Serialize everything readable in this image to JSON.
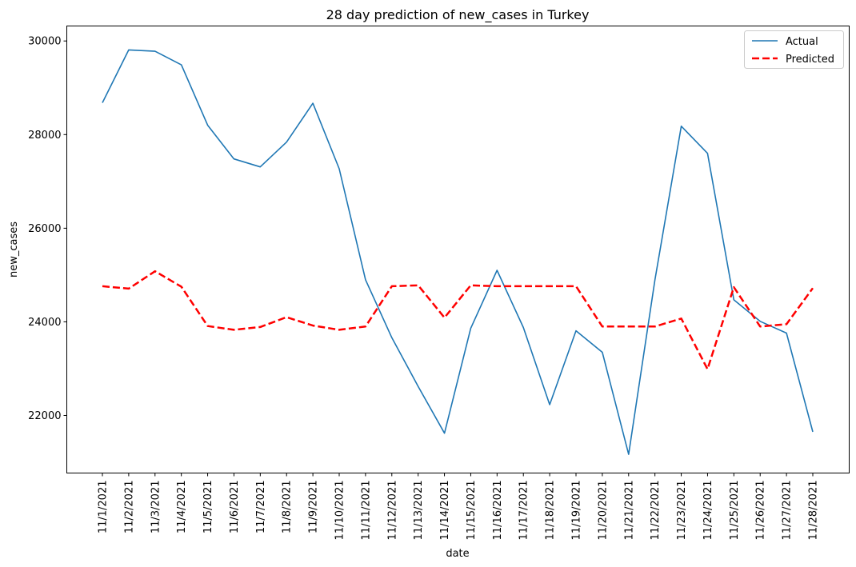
{
  "chart_data": {
    "type": "line",
    "title": "28 day prediction of new_cases in Turkey",
    "xlabel": "date",
    "ylabel": "new_cases",
    "categories": [
      "11/1/2021",
      "11/2/2021",
      "11/3/2021",
      "11/4/2021",
      "11/5/2021",
      "11/6/2021",
      "11/7/2021",
      "11/8/2021",
      "11/9/2021",
      "11/10/2021",
      "11/11/2021",
      "11/12/2021",
      "11/13/2021",
      "11/14/2021",
      "11/15/2021",
      "11/16/2021",
      "11/17/2021",
      "11/18/2021",
      "11/19/2021",
      "11/20/2021",
      "11/21/2021",
      "11/22/2021",
      "11/23/2021",
      "11/24/2021",
      "11/25/2021",
      "11/26/2021",
      "11/27/2021",
      "11/28/2021"
    ],
    "ylim": [
      20770,
      30320
    ],
    "yticks": [
      22000,
      24000,
      26000,
      28000,
      30000
    ],
    "ytick_labels": [
      "22000",
      "24000",
      "26000",
      "28000",
      "30000"
    ],
    "grid": false,
    "legend_position": "top-right",
    "series": [
      {
        "name": "Actual",
        "color": "#1f77b4",
        "style": "solid",
        "values": [
          28680,
          29810,
          29780,
          29490,
          28200,
          27480,
          27310,
          27840,
          28670,
          27270,
          24900,
          23660,
          22620,
          21620,
          23860,
          25100,
          23880,
          22230,
          23810,
          23350,
          21170,
          24900,
          28180,
          27600,
          24470,
          24010,
          23760,
          21650
        ]
      },
      {
        "name": "Predicted",
        "color": "#ff0000",
        "style": "dashed",
        "values": [
          24760,
          24710,
          25080,
          24750,
          23910,
          23830,
          23890,
          24100,
          23920,
          23830,
          23900,
          24760,
          24780,
          24090,
          24780,
          24760,
          24760,
          24760,
          24760,
          23900,
          23900,
          23900,
          24070,
          22990,
          24740,
          23900,
          23950,
          24720
        ]
      }
    ]
  }
}
